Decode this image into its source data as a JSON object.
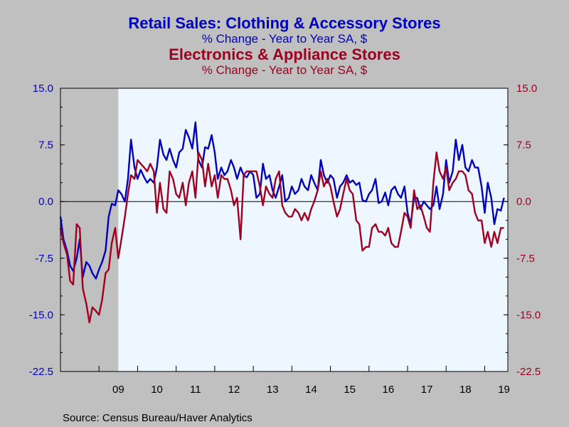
{
  "header": {
    "title_1": "Retail Sales: Clothing & Accessory Stores",
    "subtitle_1": "% Change - Year to Year    SA, $",
    "title_2": "Electronics & Appliance Stores",
    "subtitle_2": "% Change - Year to Year    SA, $"
  },
  "source": "Source:  Census Bureau/Haver Analytics",
  "colors": {
    "clothing": "#0000c0",
    "electronics": "#a00020",
    "plot_bg": "#eef6ff",
    "recession": "#c0c0c0",
    "page_bg": "#c0c0c0"
  },
  "chart_data": {
    "type": "line",
    "x_unit": "year",
    "xlim": [
      2008.0,
      2019.6
    ],
    "ylim": [
      -22.5,
      15.0
    ],
    "left_ticks": [
      "15.0",
      "7.5",
      "0.0",
      "-7.5",
      "-15.0",
      "-22.5"
    ],
    "right_ticks": [
      "15.0",
      "7.5",
      "0.0",
      "-7.5",
      "-15.0",
      "-22.5"
    ],
    "y_tick_values": [
      15.0,
      7.5,
      0.0,
      -7.5,
      -15.0,
      -22.5
    ],
    "x_tick_labels": [
      "09",
      "10",
      "11",
      "12",
      "13",
      "14",
      "15",
      "16",
      "17",
      "18",
      "19"
    ],
    "x_tick_years": [
      2009,
      2010,
      2011,
      2012,
      2013,
      2014,
      2015,
      2016,
      2017,
      2018,
      2019
    ],
    "recession": [
      2008.0,
      2009.5
    ],
    "grid": false,
    "series": [
      {
        "name": "Retail Sales: Clothing & Accessory Stores",
        "axis": "left",
        "points": [
          [
            2008.0,
            -2.0
          ],
          [
            2008.08,
            -5.0
          ],
          [
            2008.17,
            -6.5
          ],
          [
            2008.25,
            -8.5
          ],
          [
            2008.33,
            -9.2
          ],
          [
            2008.42,
            -7.5
          ],
          [
            2008.5,
            -5.0
          ],
          [
            2008.58,
            -10.0
          ],
          [
            2008.67,
            -8.0
          ],
          [
            2008.75,
            -8.5
          ],
          [
            2008.83,
            -9.5
          ],
          [
            2008.92,
            -10.2
          ],
          [
            2009.0,
            -9.0
          ],
          [
            2009.08,
            -8.0
          ],
          [
            2009.17,
            -6.5
          ],
          [
            2009.25,
            -2.0
          ],
          [
            2009.33,
            -0.3
          ],
          [
            2009.42,
            -0.5
          ],
          [
            2009.5,
            1.5
          ],
          [
            2009.58,
            1.0
          ],
          [
            2009.67,
            0.0
          ],
          [
            2009.75,
            3.0
          ],
          [
            2009.83,
            8.2
          ],
          [
            2009.92,
            4.5
          ],
          [
            2010.0,
            3.0
          ],
          [
            2010.08,
            4.2
          ],
          [
            2010.17,
            3.2
          ],
          [
            2010.25,
            2.5
          ],
          [
            2010.33,
            3.0
          ],
          [
            2010.42,
            2.5
          ],
          [
            2010.5,
            4.5
          ],
          [
            2010.58,
            8.2
          ],
          [
            2010.67,
            6.2
          ],
          [
            2010.75,
            5.5
          ],
          [
            2010.83,
            7.0
          ],
          [
            2010.92,
            5.5
          ],
          [
            2011.0,
            4.5
          ],
          [
            2011.08,
            6.5
          ],
          [
            2011.17,
            7.0
          ],
          [
            2011.25,
            9.5
          ],
          [
            2011.33,
            8.5
          ],
          [
            2011.42,
            7.0
          ],
          [
            2011.5,
            10.5
          ],
          [
            2011.58,
            5.5
          ],
          [
            2011.67,
            4.5
          ],
          [
            2011.75,
            7.2
          ],
          [
            2011.83,
            7.0
          ],
          [
            2011.92,
            8.8
          ],
          [
            2012.0,
            6.5
          ],
          [
            2012.08,
            3.0
          ],
          [
            2012.17,
            4.5
          ],
          [
            2012.25,
            3.5
          ],
          [
            2012.33,
            4.0
          ],
          [
            2012.42,
            5.5
          ],
          [
            2012.5,
            4.5
          ],
          [
            2012.58,
            3.0
          ],
          [
            2012.67,
            4.5
          ],
          [
            2012.75,
            3.5
          ],
          [
            2012.83,
            3.2
          ],
          [
            2012.92,
            4.0
          ],
          [
            2013.0,
            3.5
          ],
          [
            2013.08,
            0.5
          ],
          [
            2013.17,
            1.0
          ],
          [
            2013.25,
            5.0
          ],
          [
            2013.33,
            3.0
          ],
          [
            2013.42,
            3.5
          ],
          [
            2013.5,
            1.5
          ],
          [
            2013.58,
            0.5
          ],
          [
            2013.67,
            2.0
          ],
          [
            2013.75,
            3.5
          ],
          [
            2013.83,
            0.0
          ],
          [
            2013.92,
            0.5
          ],
          [
            2014.0,
            2.0
          ],
          [
            2014.08,
            1.0
          ],
          [
            2014.17,
            1.5
          ],
          [
            2014.25,
            3.0
          ],
          [
            2014.33,
            2.0
          ],
          [
            2014.42,
            1.5
          ],
          [
            2014.5,
            3.5
          ],
          [
            2014.58,
            2.5
          ],
          [
            2014.67,
            1.5
          ],
          [
            2014.75,
            5.5
          ],
          [
            2014.83,
            3.5
          ],
          [
            2014.92,
            2.5
          ],
          [
            2015.0,
            3.5
          ],
          [
            2015.08,
            3.0
          ],
          [
            2015.17,
            0.5
          ],
          [
            2015.25,
            2.0
          ],
          [
            2015.33,
            2.5
          ],
          [
            2015.42,
            3.5
          ],
          [
            2015.5,
            2.5
          ],
          [
            2015.58,
            2.8
          ],
          [
            2015.67,
            2.2
          ],
          [
            2015.75,
            2.5
          ],
          [
            2015.83,
            0.2
          ],
          [
            2015.92,
            0.0
          ],
          [
            2016.0,
            1.0
          ],
          [
            2016.08,
            1.5
          ],
          [
            2016.17,
            3.0
          ],
          [
            2016.25,
            -0.2
          ],
          [
            2016.33,
            0.0
          ],
          [
            2016.42,
            1.2
          ],
          [
            2016.5,
            -0.5
          ],
          [
            2016.58,
            1.5
          ],
          [
            2016.67,
            2.0
          ],
          [
            2016.75,
            1.0
          ],
          [
            2016.83,
            0.5
          ],
          [
            2016.92,
            2.0
          ],
          [
            2017.0,
            -1.5
          ],
          [
            2017.08,
            -3.0
          ],
          [
            2017.17,
            0.5
          ],
          [
            2017.25,
            0.5
          ],
          [
            2017.33,
            -1.0
          ],
          [
            2017.42,
            0.0
          ],
          [
            2017.5,
            -0.5
          ],
          [
            2017.58,
            -1.0
          ],
          [
            2017.67,
            -0.5
          ],
          [
            2017.75,
            2.0
          ],
          [
            2017.83,
            -1.0
          ],
          [
            2017.92,
            1.0
          ],
          [
            2018.0,
            5.5
          ],
          [
            2018.08,
            2.5
          ],
          [
            2018.17,
            4.0
          ],
          [
            2018.25,
            8.2
          ],
          [
            2018.33,
            5.5
          ],
          [
            2018.42,
            7.5
          ],
          [
            2018.5,
            4.5
          ],
          [
            2018.58,
            4.0
          ],
          [
            2018.67,
            5.5
          ],
          [
            2018.75,
            4.5
          ],
          [
            2018.83,
            4.5
          ],
          [
            2018.92,
            2.0
          ],
          [
            2019.0,
            -1.5
          ],
          [
            2019.08,
            2.5
          ],
          [
            2019.17,
            0.5
          ],
          [
            2019.25,
            -3.0
          ],
          [
            2019.33,
            -1.0
          ],
          [
            2019.42,
            -1.2
          ],
          [
            2019.5,
            0.5
          ]
        ]
      },
      {
        "name": "Electronics & Appliance Stores",
        "axis": "right",
        "points": [
          [
            2008.0,
            -3.5
          ],
          [
            2008.08,
            -5.5
          ],
          [
            2008.17,
            -7.0
          ],
          [
            2008.25,
            -10.5
          ],
          [
            2008.33,
            -11.0
          ],
          [
            2008.42,
            -3.0
          ],
          [
            2008.5,
            -3.5
          ],
          [
            2008.58,
            -11.5
          ],
          [
            2008.67,
            -13.5
          ],
          [
            2008.75,
            -16.0
          ],
          [
            2008.83,
            -14.0
          ],
          [
            2008.92,
            -14.5
          ],
          [
            2009.0,
            -15.0
          ],
          [
            2009.08,
            -13.0
          ],
          [
            2009.17,
            -9.5
          ],
          [
            2009.25,
            -9.0
          ],
          [
            2009.33,
            -5.5
          ],
          [
            2009.42,
            -3.5
          ],
          [
            2009.5,
            -7.5
          ],
          [
            2009.58,
            -5.0
          ],
          [
            2009.67,
            -2.0
          ],
          [
            2009.75,
            1.0
          ],
          [
            2009.83,
            3.5
          ],
          [
            2009.92,
            3.0
          ],
          [
            2010.0,
            5.5
          ],
          [
            2010.08,
            5.0
          ],
          [
            2010.17,
            4.5
          ],
          [
            2010.25,
            4.0
          ],
          [
            2010.33,
            5.0
          ],
          [
            2010.42,
            4.0
          ],
          [
            2010.5,
            -1.5
          ],
          [
            2010.58,
            2.5
          ],
          [
            2010.67,
            -1.0
          ],
          [
            2010.75,
            -1.5
          ],
          [
            2010.83,
            4.0
          ],
          [
            2010.92,
            3.0
          ],
          [
            2011.0,
            1.0
          ],
          [
            2011.08,
            0.5
          ],
          [
            2011.17,
            2.5
          ],
          [
            2011.25,
            -0.5
          ],
          [
            2011.33,
            2.5
          ],
          [
            2011.42,
            4.0
          ],
          [
            2011.5,
            0.5
          ],
          [
            2011.58,
            6.5
          ],
          [
            2011.67,
            5.5
          ],
          [
            2011.75,
            2.0
          ],
          [
            2011.83,
            5.0
          ],
          [
            2011.92,
            2.0
          ],
          [
            2012.0,
            3.5
          ],
          [
            2012.08,
            0.5
          ],
          [
            2012.17,
            3.5
          ],
          [
            2012.25,
            3.0
          ],
          [
            2012.33,
            3.0
          ],
          [
            2012.42,
            1.5
          ],
          [
            2012.5,
            -0.5
          ],
          [
            2012.58,
            0.5
          ],
          [
            2012.67,
            -5.0
          ],
          [
            2012.75,
            3.5
          ],
          [
            2012.83,
            4.0
          ],
          [
            2012.92,
            4.0
          ],
          [
            2013.0,
            4.0
          ],
          [
            2013.08,
            4.0
          ],
          [
            2013.17,
            2.0
          ],
          [
            2013.25,
            -0.5
          ],
          [
            2013.33,
            2.0
          ],
          [
            2013.42,
            1.0
          ],
          [
            2013.5,
            0.5
          ],
          [
            2013.58,
            3.0
          ],
          [
            2013.67,
            4.0
          ],
          [
            2013.75,
            -0.5
          ],
          [
            2013.83,
            -1.5
          ],
          [
            2013.92,
            -2.0
          ],
          [
            2014.0,
            -2.0
          ],
          [
            2014.08,
            -1.0
          ],
          [
            2014.17,
            -1.5
          ],
          [
            2014.25,
            -2.5
          ],
          [
            2014.33,
            -1.5
          ],
          [
            2014.42,
            -2.5
          ],
          [
            2014.5,
            -1.0
          ],
          [
            2014.58,
            0.0
          ],
          [
            2014.67,
            1.5
          ],
          [
            2014.75,
            4.0
          ],
          [
            2014.83,
            2.0
          ],
          [
            2014.92,
            3.0
          ],
          [
            2015.0,
            2.0
          ],
          [
            2015.08,
            0.0
          ],
          [
            2015.17,
            -2.0
          ],
          [
            2015.25,
            -1.0
          ],
          [
            2015.33,
            1.0
          ],
          [
            2015.42,
            3.0
          ],
          [
            2015.5,
            1.5
          ],
          [
            2015.58,
            1.0
          ],
          [
            2015.67,
            -2.5
          ],
          [
            2015.75,
            -3.0
          ],
          [
            2015.83,
            -6.5
          ],
          [
            2015.92,
            -6.0
          ],
          [
            2016.0,
            -6.0
          ],
          [
            2016.08,
            -3.5
          ],
          [
            2016.17,
            -3.0
          ],
          [
            2016.25,
            -4.0
          ],
          [
            2016.33,
            -4.0
          ],
          [
            2016.42,
            -4.5
          ],
          [
            2016.5,
            -3.5
          ],
          [
            2016.58,
            -5.5
          ],
          [
            2016.67,
            -6.0
          ],
          [
            2016.75,
            -6.0
          ],
          [
            2016.83,
            -4.0
          ],
          [
            2016.92,
            -1.5
          ],
          [
            2017.0,
            -2.0
          ],
          [
            2017.08,
            -3.5
          ],
          [
            2017.17,
            1.5
          ],
          [
            2017.25,
            -1.0
          ],
          [
            2017.33,
            -0.5
          ],
          [
            2017.42,
            -2.0
          ],
          [
            2017.5,
            -3.5
          ],
          [
            2017.58,
            -4.0
          ],
          [
            2017.67,
            2.5
          ],
          [
            2017.75,
            6.5
          ],
          [
            2017.83,
            4.0
          ],
          [
            2017.92,
            3.0
          ],
          [
            2018.0,
            4.5
          ],
          [
            2018.08,
            1.5
          ],
          [
            2018.17,
            2.5
          ],
          [
            2018.25,
            3.0
          ],
          [
            2018.33,
            4.0
          ],
          [
            2018.42,
            4.0
          ],
          [
            2018.5,
            3.5
          ],
          [
            2018.58,
            1.5
          ],
          [
            2018.67,
            1.0
          ],
          [
            2018.75,
            -1.5
          ],
          [
            2018.83,
            -2.5
          ],
          [
            2018.92,
            -2.5
          ],
          [
            2019.0,
            -5.5
          ],
          [
            2019.08,
            -4.0
          ],
          [
            2019.17,
            -6.0
          ],
          [
            2019.25,
            -4.0
          ],
          [
            2019.33,
            -5.5
          ],
          [
            2019.42,
            -3.5
          ],
          [
            2019.5,
            -3.5
          ]
        ]
      }
    ]
  }
}
